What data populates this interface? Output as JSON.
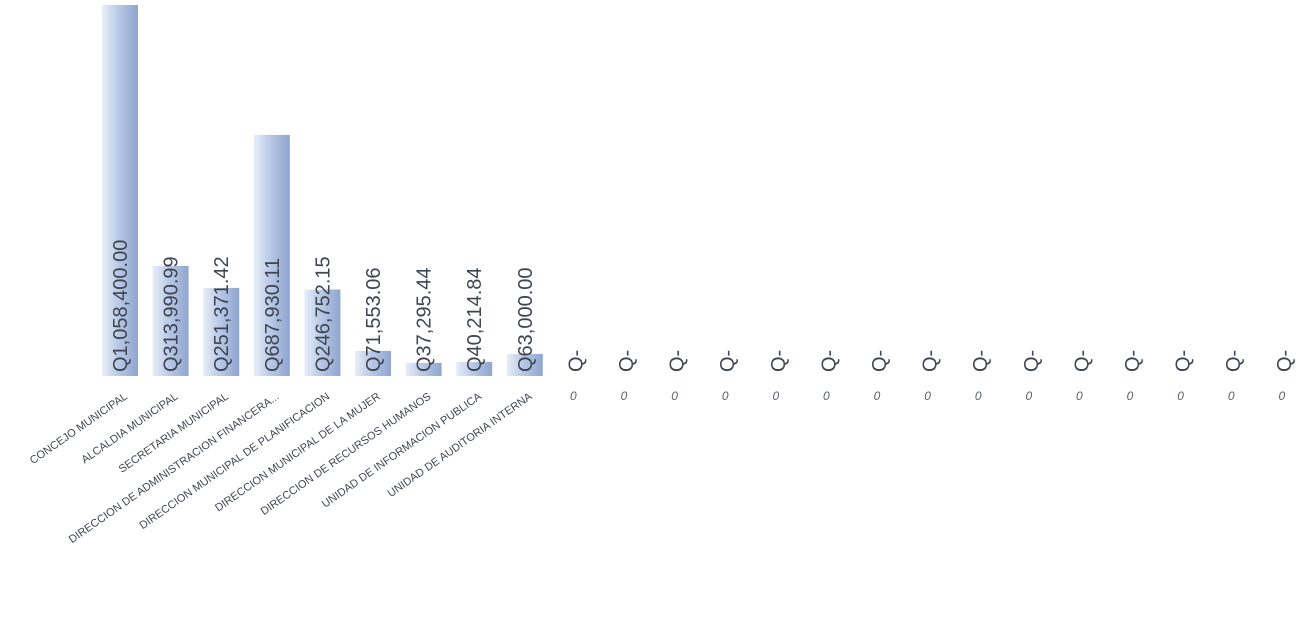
{
  "chart_data": {
    "type": "bar",
    "orientation": "vertical",
    "categories": [
      "CONCEJO MUNICIPAL",
      "ALCALDIA MUNICIPAL",
      "SECRETARIA MUNICIPAL",
      "DIRECCION DE ADMINISTRACION FINANCERA...",
      "DIRECCION MUNICIPAL DE PLANIFICACION",
      "DIRECCION MUNICIPAL DE LA MUJER",
      "DIRECCION DE RECURSOS HUMANOS",
      "UNIDAD DE INFORMACION PUBLICA",
      "UNIDAD DE AUDITORIA INTERNA",
      "0",
      "0",
      "0",
      "0",
      "0",
      "0",
      "0",
      "0",
      "0",
      "0",
      "0",
      "0",
      "0",
      "0",
      "0"
    ],
    "values": [
      1058400.0,
      313990.99,
      251371.42,
      687930.11,
      246752.15,
      71553.06,
      37295.44,
      40214.84,
      63000.0,
      0,
      0,
      0,
      0,
      0,
      0,
      0,
      0,
      0,
      0,
      0,
      0,
      0,
      0,
      0
    ],
    "value_labels": [
      "Q1,058,400.00",
      "Q313,990.99",
      "Q251,371.42",
      "Q687,930.11",
      "Q246,752.15",
      "Q71,553.06",
      "Q37,295.44",
      "Q40,214.84",
      "Q63,000.00",
      "Q-",
      "Q-",
      "Q-",
      "Q-",
      "Q-",
      "Q-",
      "Q-",
      "Q-",
      "Q-",
      "Q-",
      "Q-",
      "Q-",
      "Q-",
      "Q-",
      "Q-"
    ],
    "title": "",
    "xlabel": "",
    "ylabel": "",
    "ylim": [
      0,
      1058400
    ],
    "grid": false,
    "legend": false,
    "colors": {
      "bar_light": "#e8eef8",
      "bar_mid": "#b9c9e6",
      "bar_dark": "#8fa5cf",
      "text": "#3f4550"
    }
  }
}
